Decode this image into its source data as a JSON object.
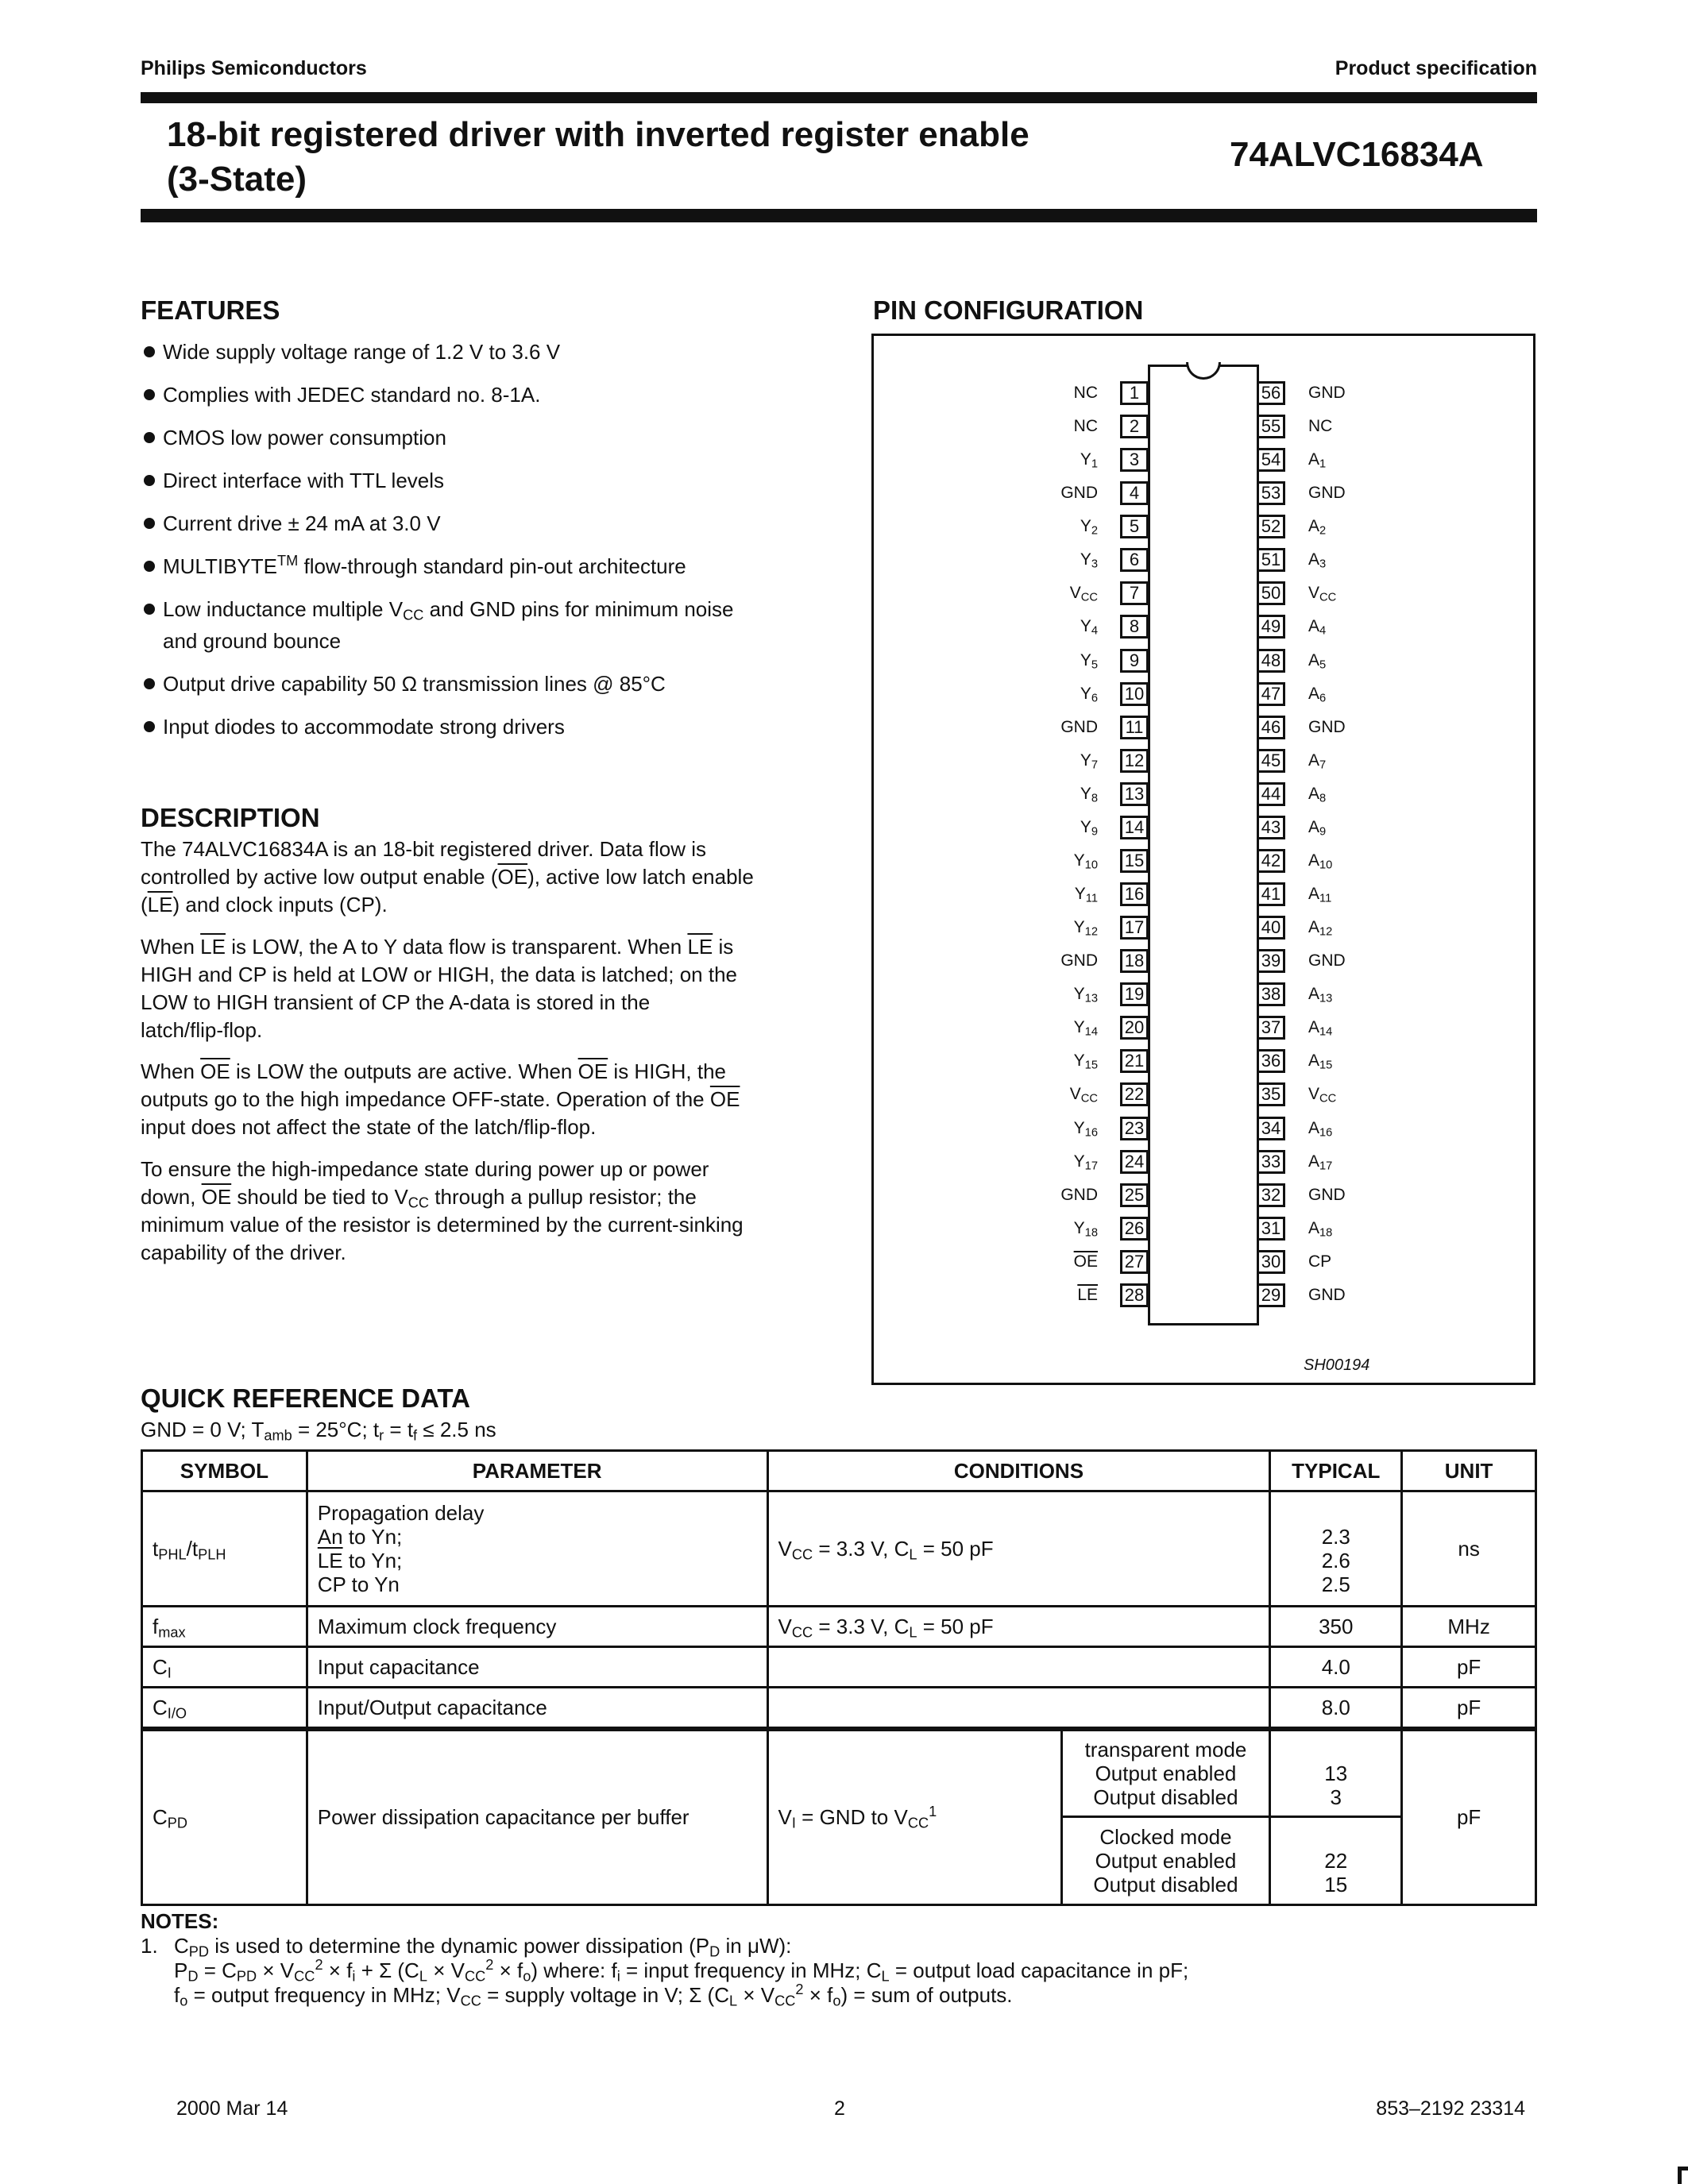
{
  "header": {
    "company": "Philips Semiconductors",
    "doc_type": "Product specification"
  },
  "title": {
    "line1": "18-bit registered driver with inverted register enable",
    "line2": "(3-State)",
    "part_number": "74ALVC16834A"
  },
  "features": {
    "heading": "FEATURES",
    "items": [
      [
        "Wide supply voltage range of 1.2 V to 3.6 V"
      ],
      [
        "Complies with JEDEC standard no. 8-1A."
      ],
      [
        "CMOS low power consumption"
      ],
      [
        "Direct interface with TTL levels"
      ],
      [
        "Current drive ± 24 mA at 3.0 V"
      ],
      [
        "MULTIBYTE",
        {
          "sup": "TM"
        },
        " flow-through standard pin-out architecture"
      ],
      [
        "Low inductance multiple V",
        {
          "sub": "CC"
        },
        " and GND pins for minimum noise",
        {
          "br": 1
        },
        "and ground bounce"
      ],
      [
        "Output drive capability 50 Ω transmission lines @ 85°C"
      ],
      [
        "Input diodes to accommodate strong drivers"
      ]
    ]
  },
  "description": {
    "heading": "DESCRIPTION",
    "paragraphs": [
      [
        [
          "The 74ALVC16834A is an 18-bit registered driver. Data flow is"
        ],
        [
          "controlled by active low output enable (",
          {
            "o": "OE"
          },
          "), active low latch enable"
        ],
        [
          "(",
          {
            "o": "LE"
          },
          ") and clock inputs (CP)."
        ]
      ],
      [
        [
          "When ",
          {
            "o": "LE"
          },
          " is LOW, the A to Y data flow is transparent. When ",
          {
            "o": "LE"
          },
          " is"
        ],
        [
          "HIGH and CP is held at LOW or HIGH, the data is latched; on the"
        ],
        [
          "LOW to HIGH transient of CP the A-data is stored in the"
        ],
        [
          "latch/flip-flop."
        ]
      ],
      [
        [
          "When ",
          {
            "o": "OE"
          },
          " is LOW the outputs are active. When ",
          {
            "o": "OE"
          },
          " is HIGH, the"
        ],
        [
          "outputs go to the high impedance OFF-state. Operation of the ",
          {
            "o": "OE"
          }
        ],
        [
          "input does not affect the state of the latch/flip-flop."
        ]
      ],
      [
        [
          "To ensure the high-impedance state during power up or power"
        ],
        [
          "down, ",
          {
            "o": "OE"
          },
          " should be tied to V",
          {
            "sub": "CC"
          },
          " through a pullup resistor; the"
        ],
        [
          "minimum value of the resistor is determined by the current-sinking"
        ],
        [
          "capability of the driver."
        ]
      ]
    ]
  },
  "pin_config": {
    "heading": "PIN CONFIGURATION",
    "figure_id": "SH00194",
    "left_pins": [
      {
        "n": "1",
        "l": [
          "NC"
        ]
      },
      {
        "n": "2",
        "l": [
          "NC"
        ]
      },
      {
        "n": "3",
        "l": [
          "Y",
          {
            "sub": "1"
          }
        ]
      },
      {
        "n": "4",
        "l": [
          "GND"
        ]
      },
      {
        "n": "5",
        "l": [
          "Y",
          {
            "sub": "2"
          }
        ]
      },
      {
        "n": "6",
        "l": [
          "Y",
          {
            "sub": "3"
          }
        ]
      },
      {
        "n": "7",
        "l": [
          "V",
          {
            "sub": "CC"
          }
        ]
      },
      {
        "n": "8",
        "l": [
          "Y",
          {
            "sub": "4"
          }
        ]
      },
      {
        "n": "9",
        "l": [
          "Y",
          {
            "sub": "5"
          }
        ]
      },
      {
        "n": "10",
        "l": [
          "Y",
          {
            "sub": "6"
          }
        ]
      },
      {
        "n": "11",
        "l": [
          "GND"
        ]
      },
      {
        "n": "12",
        "l": [
          "Y",
          {
            "sub": "7"
          }
        ]
      },
      {
        "n": "13",
        "l": [
          "Y",
          {
            "sub": "8"
          }
        ]
      },
      {
        "n": "14",
        "l": [
          "Y",
          {
            "sub": "9"
          }
        ]
      },
      {
        "n": "15",
        "l": [
          "Y",
          {
            "sub": "10"
          }
        ]
      },
      {
        "n": "16",
        "l": [
          "Y",
          {
            "sub": "11"
          }
        ]
      },
      {
        "n": "17",
        "l": [
          "Y",
          {
            "sub": "12"
          }
        ]
      },
      {
        "n": "18",
        "l": [
          "GND"
        ]
      },
      {
        "n": "19",
        "l": [
          "Y",
          {
            "sub": "13"
          }
        ]
      },
      {
        "n": "20",
        "l": [
          "Y",
          {
            "sub": "14"
          }
        ]
      },
      {
        "n": "21",
        "l": [
          "Y",
          {
            "sub": "15"
          }
        ]
      },
      {
        "n": "22",
        "l": [
          "V",
          {
            "sub": "CC"
          }
        ]
      },
      {
        "n": "23",
        "l": [
          "Y",
          {
            "sub": "16"
          }
        ]
      },
      {
        "n": "24",
        "l": [
          "Y",
          {
            "sub": "17"
          }
        ]
      },
      {
        "n": "25",
        "l": [
          "GND"
        ]
      },
      {
        "n": "26",
        "l": [
          "Y",
          {
            "sub": "18"
          }
        ]
      },
      {
        "n": "27",
        "l": [
          {
            "o": "OE"
          }
        ]
      },
      {
        "n": "28",
        "l": [
          {
            "o": "LE"
          }
        ]
      }
    ],
    "right_pins": [
      {
        "n": "56",
        "l": [
          "GND"
        ]
      },
      {
        "n": "55",
        "l": [
          "NC"
        ]
      },
      {
        "n": "54",
        "l": [
          "A",
          {
            "sub": "1"
          }
        ]
      },
      {
        "n": "53",
        "l": [
          "GND"
        ]
      },
      {
        "n": "52",
        "l": [
          "A",
          {
            "sub": "2"
          }
        ]
      },
      {
        "n": "51",
        "l": [
          "A",
          {
            "sub": "3"
          }
        ]
      },
      {
        "n": "50",
        "l": [
          "V",
          {
            "sub": "CC"
          }
        ]
      },
      {
        "n": "49",
        "l": [
          "A",
          {
            "sub": "4"
          }
        ]
      },
      {
        "n": "48",
        "l": [
          "A",
          {
            "sub": "5"
          }
        ]
      },
      {
        "n": "47",
        "l": [
          "A",
          {
            "sub": "6"
          }
        ]
      },
      {
        "n": "46",
        "l": [
          "GND"
        ]
      },
      {
        "n": "45",
        "l": [
          "A",
          {
            "sub": "7"
          }
        ]
      },
      {
        "n": "44",
        "l": [
          "A",
          {
            "sub": "8"
          }
        ]
      },
      {
        "n": "43",
        "l": [
          "A",
          {
            "sub": "9"
          }
        ]
      },
      {
        "n": "42",
        "l": [
          "A",
          {
            "sub": "10"
          }
        ]
      },
      {
        "n": "41",
        "l": [
          "A",
          {
            "sub": "11"
          }
        ]
      },
      {
        "n": "40",
        "l": [
          "A",
          {
            "sub": "12"
          }
        ]
      },
      {
        "n": "39",
        "l": [
          "GND"
        ]
      },
      {
        "n": "38",
        "l": [
          "A",
          {
            "sub": "13"
          }
        ]
      },
      {
        "n": "37",
        "l": [
          "A",
          {
            "sub": "14"
          }
        ]
      },
      {
        "n": "36",
        "l": [
          "A",
          {
            "sub": "15"
          }
        ]
      },
      {
        "n": "35",
        "l": [
          "V",
          {
            "sub": "CC"
          }
        ]
      },
      {
        "n": "34",
        "l": [
          "A",
          {
            "sub": "16"
          }
        ]
      },
      {
        "n": "33",
        "l": [
          "A",
          {
            "sub": "17"
          }
        ]
      },
      {
        "n": "32",
        "l": [
          "GND"
        ]
      },
      {
        "n": "31",
        "l": [
          "A",
          {
            "sub": "18"
          }
        ]
      },
      {
        "n": "30",
        "l": [
          "CP"
        ]
      },
      {
        "n": "29",
        "l": [
          "GND"
        ]
      }
    ]
  },
  "quick_ref": {
    "heading": "QUICK REFERENCE DATA",
    "subtitle": [
      "GND = 0 V; T",
      {
        "sub": "amb"
      },
      " = 25°C; t",
      {
        "sub": "r"
      },
      " = t",
      {
        "sub": "f"
      },
      " ≤ 2.5 ns"
    ],
    "columns": [
      "SYMBOL",
      "PARAMETER",
      "CONDITIONS",
      "TYPICAL",
      "UNIT"
    ],
    "rows": {
      "tphl": {
        "symbol": [
          "t",
          {
            "sub": "PHL"
          },
          "/t",
          {
            "sub": "PLH"
          }
        ],
        "parameter": [
          "Propagation delay",
          {
            "br": 1
          },
          "An to Yn;",
          {
            "br": 1
          },
          {
            "o": "LE"
          },
          " to Yn;",
          {
            "br": 1
          },
          "CP to Yn"
        ],
        "conditions": [
          "V",
          {
            "sub": "CC"
          },
          " = 3.3 V, C",
          {
            "sub": "L"
          },
          " = 50 pF"
        ],
        "typical": [
          "2.3",
          {
            "br": 1
          },
          "2.6",
          {
            "br": 1
          },
          "2.5"
        ],
        "unit": [
          "ns"
        ]
      },
      "fmax": {
        "symbol": [
          "f",
          {
            "sub": "max"
          }
        ],
        "parameter": [
          "Maximum clock frequency"
        ],
        "conditions": [
          "V",
          {
            "sub": "CC"
          },
          " = 3.3 V, C",
          {
            "sub": "L"
          },
          " = 50 pF"
        ],
        "typical": [
          "350"
        ],
        "unit": [
          "MHz"
        ]
      },
      "ci": {
        "symbol": [
          "C",
          {
            "sub": "I"
          }
        ],
        "parameter": [
          "Input capacitance"
        ],
        "conditions": [],
        "typical": [
          "4.0"
        ],
        "unit": [
          "pF"
        ]
      },
      "cio": {
        "symbol": [
          "C",
          {
            "sub": "I/O"
          }
        ],
        "parameter": [
          "Input/Output capacitance"
        ],
        "conditions": [],
        "typical": [
          "8.0"
        ],
        "unit": [
          "pF"
        ]
      },
      "cpd": {
        "symbol": [
          "C",
          {
            "sub": "PD"
          }
        ],
        "parameter": [
          "Power dissipation capacitance per buffer"
        ],
        "conditions": [
          "V",
          {
            "sub": "I"
          },
          " = GND to V",
          {
            "sub": "CC"
          },
          {
            "sup": "1"
          }
        ],
        "mode1": [
          "transparent  mode",
          {
            "br": 1
          },
          "Output enabled",
          {
            "br": 1
          },
          "Output disabled"
        ],
        "typical1": [
          {
            "br": 1
          },
          "13",
          {
            "br": 1
          },
          "3"
        ],
        "mode2": [
          "Clocked mode",
          {
            "br": 1
          },
          "Output enabled",
          {
            "br": 1
          },
          "Output disabled"
        ],
        "typical2": [
          {
            "br": 1
          },
          "22",
          {
            "br": 1
          },
          "15"
        ],
        "unit": [
          "pF"
        ]
      }
    }
  },
  "notes": {
    "heading": "NOTES:",
    "number": "1.",
    "lines": [
      [
        "C",
        {
          "sub": "PD"
        },
        " is used to determine the dynamic power dissipation (P",
        {
          "sub": "D"
        },
        " in μW):"
      ],
      [
        "P",
        {
          "sub": "D"
        },
        " = C",
        {
          "sub": "PD"
        },
        " × V",
        {
          "sub": "CC"
        },
        {
          "sup": "2"
        },
        " × f",
        {
          "sub": "i"
        },
        " + Σ (C",
        {
          "sub": "L"
        },
        " × V",
        {
          "sub": "CC"
        },
        {
          "sup": "2"
        },
        " × f",
        {
          "sub": "o"
        },
        ") where: f",
        {
          "sub": "i"
        },
        " = input frequency in MHz; C",
        {
          "sub": "L"
        },
        " = output load capacitance in pF;"
      ],
      [
        "f",
        {
          "sub": "o"
        },
        " = output frequency in MHz; V",
        {
          "sub": "CC"
        },
        " = supply voltage in V; Σ (C",
        {
          "sub": "L"
        },
        " × V",
        {
          "sub": "CC"
        },
        {
          "sup": "2"
        },
        " × f",
        {
          "sub": "o"
        },
        ") = sum of outputs."
      ]
    ]
  },
  "footer": {
    "date": "2000 Mar 14",
    "page": "2",
    "doc_number": "853–2192 23314"
  }
}
